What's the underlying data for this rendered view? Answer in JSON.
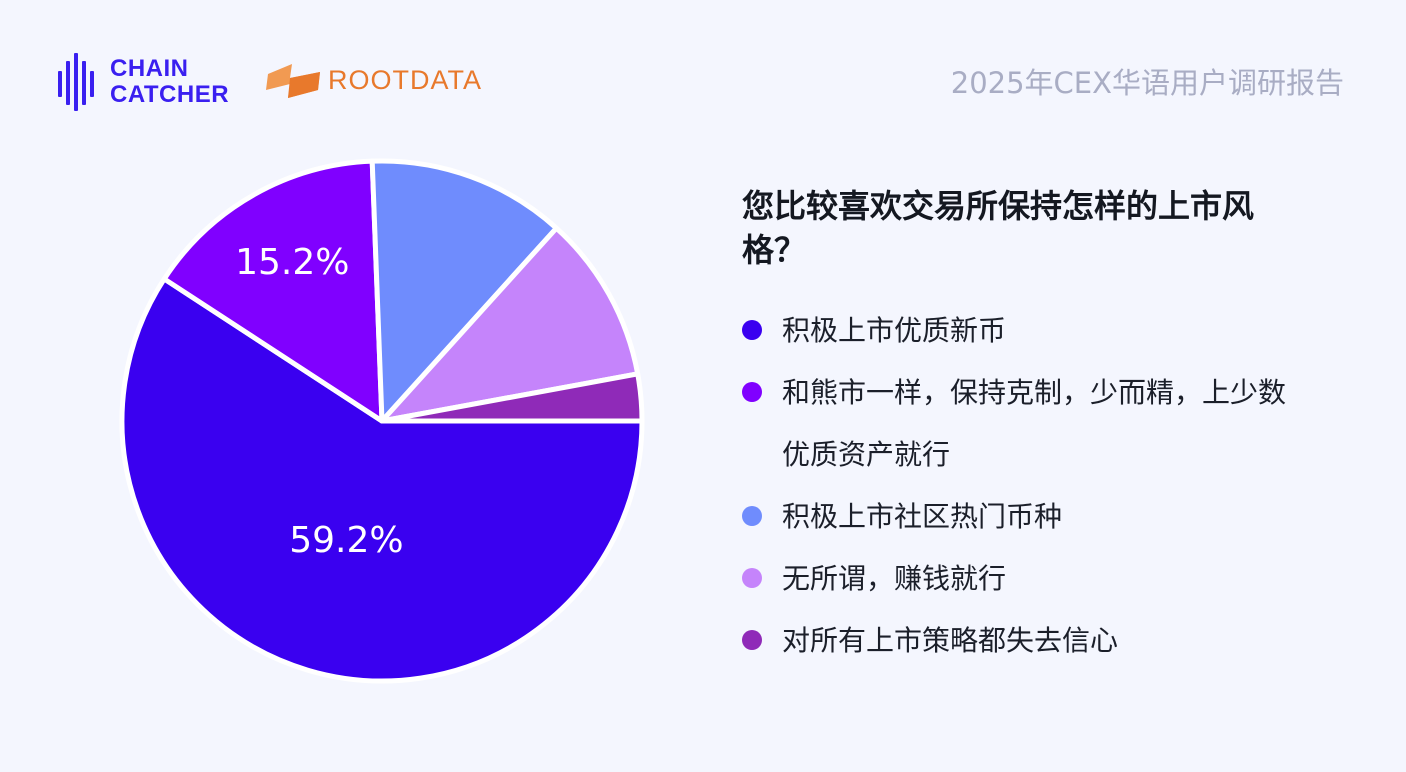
{
  "branding": {
    "chain_line1": "CHAIN",
    "chain_line2": "CATCHER",
    "root_name": "ROOTDATA",
    "report_title": "2025年CEX华语用户调研报告"
  },
  "colors": {
    "background": "#f4f6fe",
    "chain_blue": "#3a1ff0",
    "root_orange": "#e8792c"
  },
  "question": "您比较喜欢交易所保持怎样的上市风格？",
  "chart_data": {
    "type": "pie",
    "title": "您比较喜欢交易所保持怎样的上市风格？",
    "slices": [
      {
        "label": "积极上市优质新币",
        "value": 59.2,
        "data_label": "59.2%",
        "color": "#3a00f0"
      },
      {
        "label": "和熊市一样，保持克制，少而精，上少数优质资产就行",
        "value": 15.2,
        "data_label": "15.2%",
        "color": "#8000ff"
      },
      {
        "label": "积极上市社区热门币种",
        "value": 12.3,
        "data_label": "",
        "color": "#6f8cfd"
      },
      {
        "label": "无所谓，赚钱就行",
        "value": 10.4,
        "data_label": "",
        "color": "#c584fb"
      },
      {
        "label": "对所有上市策略都失去信心",
        "value": 2.9,
        "data_label": "",
        "color": "#8f2ab8"
      }
    ],
    "legend_position": "right"
  }
}
